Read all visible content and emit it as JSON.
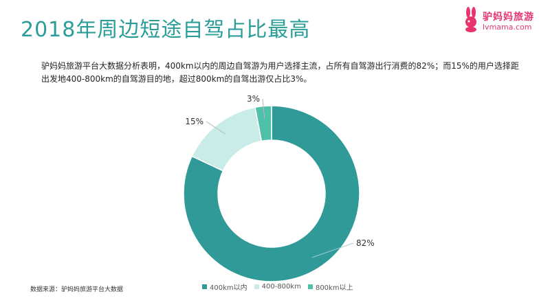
{
  "title": "2018年周边短途自驾占比最高",
  "logo": {
    "cn": "驴妈妈旅游",
    "en": "lvmama.com"
  },
  "description": "驴妈妈旅游平台大数据分析表明，400km以内的周边自驾游为用户选择主流，占所有自驾游出行消费的82%；而15%的用户选择距出发地400-800km的自驾游目的地，超过800km的自驾出游仅占比3%。",
  "source": "数据来源：驴妈妈旅游平台大数据",
  "colors": {
    "title": "#2a9d98",
    "s1": "#2f9a98",
    "s2": "#c9ece8",
    "s3": "#4fc1a8",
    "brand": "#e8356d"
  },
  "chart_data": {
    "type": "pie",
    "donut": true,
    "categories": [
      "400km以内",
      "400-800km",
      "800km以上"
    ],
    "values": [
      82,
      15,
      3
    ],
    "labels": [
      "82%",
      "15%",
      "3%"
    ],
    "legend": "bottom"
  }
}
